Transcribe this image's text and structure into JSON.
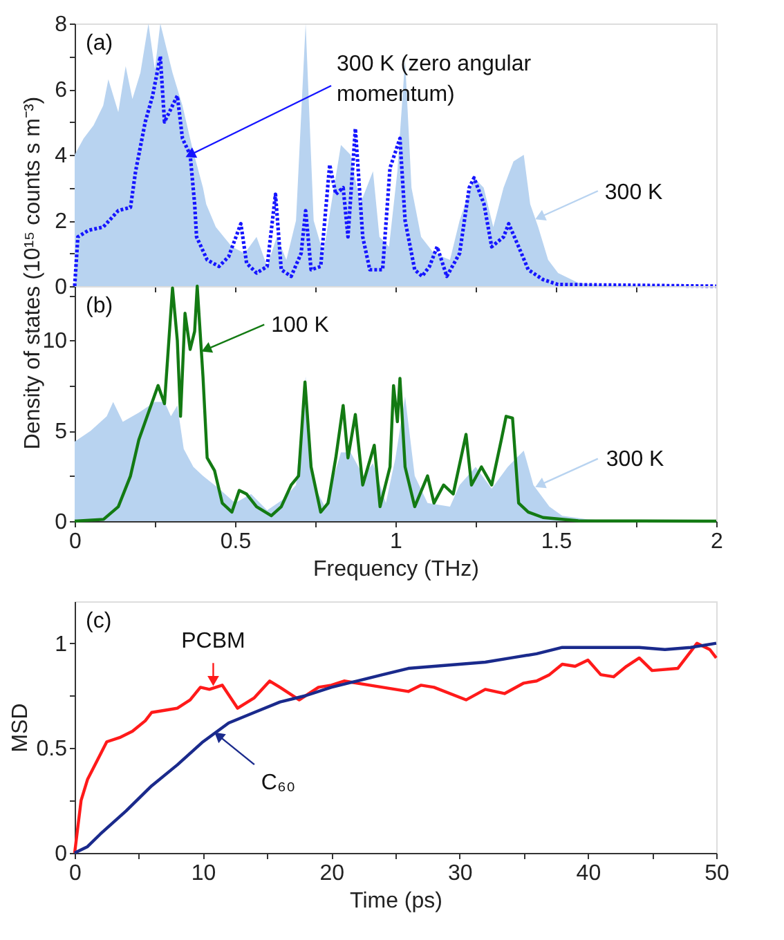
{
  "chart_data": [
    {
      "type": "line",
      "ylabel": "Density of states (10¹⁵ counts s m⁻³)",
      "xlim": [
        0,
        2
      ],
      "ylim": [
        0,
        8
      ],
      "tick_labels": "y",
      "grid": false,
      "xticks": [
        0,
        {
          "value": 0.25,
          "label": null
        },
        0.5,
        {
          "value": 0.75,
          "label": null
        },
        1,
        {
          "value": 1.25,
          "label": null
        },
        1.5,
        {
          "value": 1.75,
          "label": null
        },
        2
      ],
      "yticks": [
        0,
        {
          "value": 1,
          "label": null
        },
        2,
        {
          "value": 3,
          "label": null
        },
        4,
        {
          "value": 5,
          "label": null
        },
        6,
        {
          "value": 7,
          "label": null
        },
        8
      ],
      "annotations": [
        "(a)",
        {
          "text": "300 K (zero angular momentum)",
          "x": 0.36,
          "y": 4.0
        },
        {
          "text": "300 K",
          "x": 1.45,
          "y": 2.1
        }
      ],
      "series": [
        {
          "type": "area",
          "color": "#b8d3f0",
          "x": [
            0,
            0.028,
            0.059,
            0.089,
            0.105,
            0.136,
            0.159,
            0.18,
            0.205,
            0.23,
            0.25,
            0.267,
            0.305,
            0.336,
            0.367,
            0.4,
            0.41,
            0.44,
            0.49,
            0.53,
            0.567,
            0.6,
            0.63,
            0.66,
            0.69,
            0.72,
            0.745,
            0.775,
            0.8,
            0.83,
            0.86,
            0.89,
            0.93,
            0.95,
            0.98,
            1.006,
            1.03,
            1.05,
            1.08,
            1.12,
            1.17,
            1.2,
            1.245,
            1.275,
            1.305,
            1.337,
            1.368,
            1.4,
            1.42,
            1.445,
            1.476,
            1.507,
            1.57,
            1.645,
            2
          ],
          "values": [
            4.0,
            4.5,
            4.9,
            5.5,
            6.3,
            5.3,
            6.7,
            5.7,
            6.5,
            8.0,
            6.6,
            8.0,
            6.5,
            5.5,
            4.2,
            3.0,
            2.5,
            1.8,
            1.2,
            1.0,
            1.5,
            0.6,
            1.5,
            0.8,
            2.0,
            8.0,
            2.0,
            1.0,
            2.5,
            4.3,
            4.0,
            2.5,
            3.5,
            1.5,
            1.2,
            3.5,
            6.9,
            3.0,
            1.5,
            1.0,
            0.8,
            2.0,
            3.3,
            3.0,
            1.8,
            3.0,
            3.8,
            4.0,
            2.5,
            1.8,
            0.8,
            0.4,
            0.1,
            0.03,
            0
          ]
        },
        {
          "type": "line",
          "line_style": "dotted",
          "color": "#1515ff",
          "x": [
            0,
            0.01,
            0.043,
            0.089,
            0.136,
            0.174,
            0.19,
            0.22,
            0.243,
            0.267,
            0.28,
            0.32,
            0.336,
            0.36,
            0.374,
            0.38,
            0.413,
            0.45,
            0.48,
            0.518,
            0.536,
            0.567,
            0.6,
            0.626,
            0.644,
            0.675,
            0.706,
            0.72,
            0.737,
            0.767,
            0.795,
            0.814,
            0.837,
            0.852,
            0.875,
            0.898,
            0.92,
            0.96,
            0.983,
            1.014,
            1.03,
            1.06,
            1.083,
            1.106,
            1.13,
            1.16,
            1.2,
            1.23,
            1.245,
            1.276,
            1.3,
            1.337,
            1.353,
            1.384,
            1.414,
            1.46,
            1.507,
            2
          ],
          "values": [
            0,
            1.5,
            1.7,
            1.8,
            2.3,
            2.4,
            3.5,
            5.0,
            5.8,
            7.0,
            5.0,
            5.8,
            4.5,
            4.0,
            2.5,
            1.5,
            0.8,
            0.6,
            0.9,
            1.9,
            0.7,
            0.4,
            0.6,
            2.8,
            0.5,
            0.3,
            1.0,
            2.3,
            0.5,
            0.6,
            3.7,
            2.8,
            3.0,
            1.5,
            4.8,
            1.5,
            0.5,
            0.5,
            3.6,
            4.5,
            2.0,
            0.5,
            0.3,
            0.6,
            1.2,
            0.3,
            1.0,
            3.0,
            3.3,
            2.5,
            1.2,
            1.5,
            1.9,
            1.2,
            0.5,
            0.2,
            0.05,
            0
          ]
        }
      ]
    },
    {
      "type": "line",
      "xlabel": "Frequency (THz)",
      "xlim": [
        0,
        2
      ],
      "ylim": [
        0,
        13
      ],
      "grid": false,
      "xticks": [
        0,
        {
          "value": 0.25,
          "label": null
        },
        0.5,
        {
          "value": 0.75,
          "label": null
        },
        1,
        {
          "value": 1.25,
          "label": null
        },
        1.5,
        {
          "value": 1.75,
          "label": null
        },
        2
      ],
      "yticks": [
        0,
        {
          "value": 2.5,
          "label": null
        },
        5,
        {
          "value": 7.5,
          "label": null
        },
        10,
        {
          "value": 12.5,
          "label": null
        }
      ],
      "annotations": [
        "(b)",
        {
          "text": "100 K",
          "x": 0.41,
          "y": 9.5
        },
        {
          "text": "300 K",
          "x": 1.45,
          "y": 2.0
        }
      ],
      "series": [
        {
          "type": "area",
          "color": "#b8d3f0",
          "x": [
            0,
            0.05,
            0.1,
            0.12,
            0.15,
            0.2,
            0.25,
            0.28,
            0.3,
            0.32,
            0.34,
            0.37,
            0.4,
            0.45,
            0.5,
            0.55,
            0.6,
            0.65,
            0.69,
            0.72,
            0.745,
            0.78,
            0.83,
            0.86,
            0.9,
            0.93,
            0.97,
            1.0,
            1.03,
            1.06,
            1.1,
            1.17,
            1.2,
            1.25,
            1.3,
            1.35,
            1.4,
            1.43,
            1.48,
            1.52,
            1.6,
            1.7,
            2
          ],
          "values": [
            4.4,
            5.0,
            5.8,
            6.6,
            5.5,
            6.0,
            6.6,
            6.6,
            5.8,
            6.4,
            4.0,
            3.0,
            2.5,
            1.8,
            1.0,
            1.5,
            0.6,
            1.2,
            2.0,
            8.0,
            2.0,
            0.8,
            3.8,
            3.8,
            2.5,
            3.2,
            1.0,
            3.5,
            6.9,
            2.5,
            1.0,
            0.8,
            2.0,
            3.0,
            1.8,
            3.0,
            3.9,
            2.0,
            0.8,
            0.3,
            0.1,
            0.02,
            0
          ]
        },
        {
          "type": "line",
          "color": "#137a13",
          "x": [
            0,
            0.09,
            0.136,
            0.174,
            0.2,
            0.23,
            0.26,
            0.28,
            0.305,
            0.32,
            0.33,
            0.344,
            0.36,
            0.374,
            0.382,
            0.4,
            0.413,
            0.436,
            0.46,
            0.49,
            0.513,
            0.536,
            0.567,
            0.613,
            0.644,
            0.675,
            0.698,
            0.718,
            0.737,
            0.767,
            0.79,
            0.814,
            0.837,
            0.852,
            0.875,
            0.898,
            0.934,
            0.952,
            0.983,
            0.994,
            1.006,
            1.014,
            1.03,
            1.06,
            1.1,
            1.12,
            1.15,
            1.18,
            1.22,
            1.237,
            1.268,
            1.3,
            1.33,
            1.345,
            1.365,
            1.384,
            1.414,
            1.46,
            1.57,
            2
          ],
          "values": [
            0,
            0.1,
            0.8,
            2.5,
            4.5,
            6.0,
            7.5,
            6.5,
            12.9,
            10,
            5.8,
            11.5,
            9.5,
            10.5,
            13,
            8,
            3.5,
            2.8,
            1.0,
            0.5,
            1.7,
            1.5,
            0.8,
            0.3,
            0.8,
            2.0,
            2.5,
            7.7,
            3.0,
            0.5,
            1.0,
            3.5,
            6.4,
            3.5,
            5.9,
            2.0,
            4.2,
            0.8,
            3.0,
            7.5,
            5.5,
            7.9,
            3.0,
            0.8,
            2.5,
            1.0,
            2.0,
            1.5,
            4.8,
            2.0,
            3.0,
            2.0,
            4.5,
            5.8,
            5.7,
            1.0,
            0.5,
            0.2,
            0.02,
            0
          ]
        }
      ]
    },
    {
      "type": "line",
      "xlabel": "Time (ps)",
      "ylabel": "MSD",
      "xlim": [
        0,
        50
      ],
      "ylim": [
        0,
        1.2
      ],
      "grid": false,
      "xticks": [
        0,
        {
          "value": 5,
          "label": null
        },
        10,
        {
          "value": 15,
          "label": null
        },
        20,
        {
          "value": 25,
          "label": null
        },
        30,
        {
          "value": 35,
          "label": null
        },
        40,
        {
          "value": 45,
          "label": null
        },
        50
      ],
      "yticks": [
        0,
        {
          "value": 0.25,
          "label": null
        },
        0.5,
        {
          "value": 0.75,
          "label": null
        },
        1
      ],
      "annotations": [
        "(c)",
        {
          "text": "PCBM",
          "x": 10.8,
          "y": 0.82
        },
        {
          "text": "C₆₀",
          "x": 11.2,
          "y": 0.56
        }
      ],
      "series": [
        {
          "type": "line",
          "color": "#ff1a1a",
          "x": [
            0,
            0.5,
            1,
            2,
            2.5,
            3.5,
            4.5,
            5.5,
            6,
            7,
            8,
            9,
            9.8,
            10.5,
            11.5,
            12.7,
            14,
            15.2,
            16,
            17.5,
            19,
            20,
            21,
            23,
            25,
            26,
            27,
            28,
            30.5,
            32,
            33.5,
            35,
            36,
            37,
            38,
            39,
            40,
            41,
            42,
            43,
            44,
            45,
            47,
            48,
            48.5,
            49.5,
            50
          ],
          "values": [
            0,
            0.25,
            0.35,
            0.47,
            0.53,
            0.55,
            0.58,
            0.63,
            0.67,
            0.68,
            0.69,
            0.73,
            0.79,
            0.78,
            0.8,
            0.69,
            0.74,
            0.82,
            0.79,
            0.73,
            0.79,
            0.8,
            0.82,
            0.8,
            0.78,
            0.77,
            0.8,
            0.79,
            0.73,
            0.78,
            0.76,
            0.81,
            0.82,
            0.85,
            0.9,
            0.89,
            0.92,
            0.85,
            0.84,
            0.89,
            0.93,
            0.87,
            0.88,
            0.96,
            1.0,
            0.97,
            0.93
          ]
        },
        {
          "type": "line",
          "color": "#1a2a8c",
          "x": [
            0,
            1,
            2,
            4,
            6,
            8,
            10,
            12,
            14,
            16,
            18,
            20,
            22,
            24,
            26,
            28,
            30,
            32,
            34,
            36,
            38,
            40,
            42,
            44,
            46,
            48,
            50
          ],
          "values": [
            0,
            0.03,
            0.09,
            0.2,
            0.32,
            0.42,
            0.53,
            0.62,
            0.67,
            0.72,
            0.75,
            0.79,
            0.82,
            0.85,
            0.88,
            0.89,
            0.9,
            0.91,
            0.93,
            0.95,
            0.98,
            0.98,
            0.98,
            0.98,
            0.97,
            0.98,
            1.0
          ]
        }
      ]
    }
  ]
}
